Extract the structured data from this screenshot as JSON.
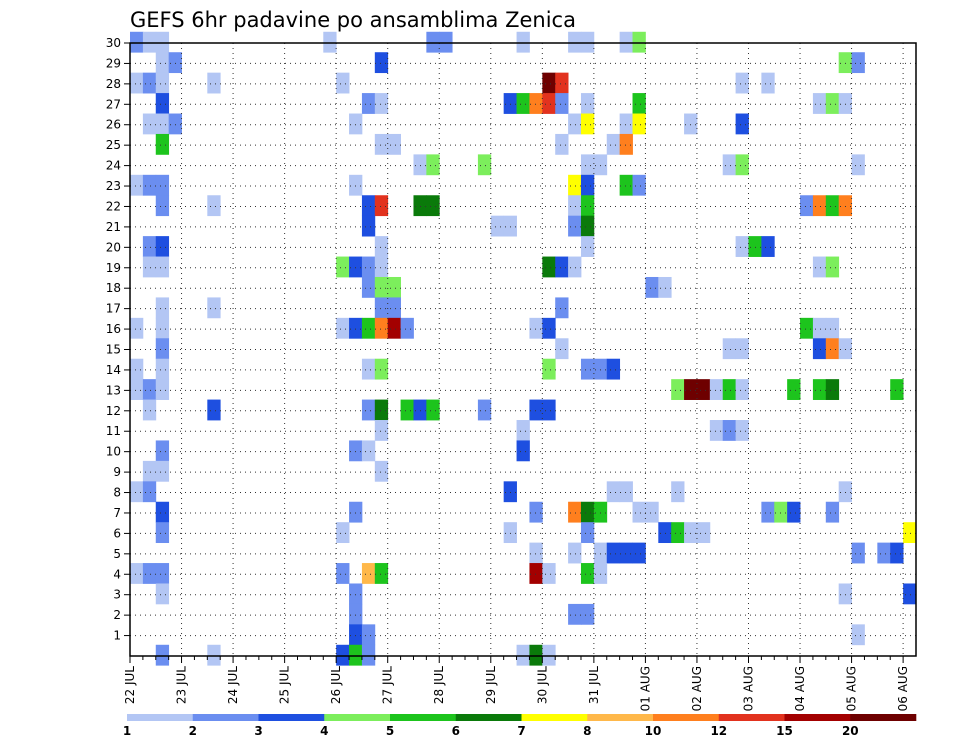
{
  "chart_data": {
    "type": "heatmap",
    "title": "GEFS 6hr padavine po ansamblima Zenica",
    "xlabel": "",
    "ylabel": "",
    "x_tick_labels": [
      "22 JUL",
      "23 JUL",
      "24 JUL",
      "25 JUL",
      "26 JUL",
      "27 JUL",
      "28 JUL",
      "29 JUL",
      "30 JUL",
      "31 JUL",
      "01 AUG",
      "02 AUG",
      "03 AUG",
      "04 AUG",
      "05 AUG",
      "06 AUG"
    ],
    "y_tick_labels": [
      "1",
      "2",
      "3",
      "4",
      "5",
      "6",
      "7",
      "8",
      "9",
      "10",
      "11",
      "12",
      "13",
      "14",
      "15",
      "16",
      "17",
      "18",
      "19",
      "20",
      "21",
      "22",
      "23",
      "24",
      "25",
      "26",
      "27",
      "28",
      "29",
      "30"
    ],
    "ylim": [
      0,
      30
    ],
    "time_steps": 61,
    "grid": true,
    "colorbar": {
      "levels": [
        "1",
        "2",
        "3",
        "4",
        "5",
        "6",
        "7",
        "8",
        "10",
        "12",
        "15",
        "20"
      ],
      "colors": [
        "#b3c6f4",
        "#6b8ef0",
        "#1e4fe0",
        "#7cee5c",
        "#1dc41d",
        "#0a7a0a",
        "#ffff00",
        "#ffb84a",
        "#ff7f1e",
        "#e2321e",
        "#a30000",
        "#6e0000"
      ]
    },
    "cells": [
      [
        0,
        30,
        2
      ],
      [
        1,
        30,
        1
      ],
      [
        2,
        30,
        1
      ],
      [
        15,
        30,
        1
      ],
      [
        23,
        30,
        2
      ],
      [
        24,
        30,
        2
      ],
      [
        30,
        30,
        1
      ],
      [
        34,
        30,
        1
      ],
      [
        35,
        30,
        1
      ],
      [
        38,
        30,
        1
      ],
      [
        39,
        30,
        4
      ],
      [
        2,
        29,
        1
      ],
      [
        3,
        29,
        2
      ],
      [
        19,
        29,
        3
      ],
      [
        55,
        29,
        4
      ],
      [
        56,
        29,
        2
      ],
      [
        0,
        28,
        1
      ],
      [
        1,
        28,
        2
      ],
      [
        2,
        28,
        1
      ],
      [
        6,
        28,
        1
      ],
      [
        16,
        28,
        1
      ],
      [
        32,
        28,
        12
      ],
      [
        33,
        28,
        10
      ],
      [
        47,
        28,
        1
      ],
      [
        49,
        28,
        1
      ],
      [
        2,
        27,
        3
      ],
      [
        18,
        27,
        2
      ],
      [
        19,
        27,
        1
      ],
      [
        29,
        27,
        3
      ],
      [
        30,
        27,
        5
      ],
      [
        31,
        27,
        9
      ],
      [
        32,
        27,
        10
      ],
      [
        33,
        27,
        2
      ],
      [
        35,
        27,
        1
      ],
      [
        39,
        27,
        5
      ],
      [
        53,
        27,
        1
      ],
      [
        54,
        27,
        4
      ],
      [
        55,
        27,
        1
      ],
      [
        1,
        26,
        1
      ],
      [
        2,
        26,
        1
      ],
      [
        3,
        26,
        2
      ],
      [
        17,
        26,
        1
      ],
      [
        34,
        26,
        1
      ],
      [
        35,
        26,
        7
      ],
      [
        38,
        26,
        1
      ],
      [
        39,
        26,
        7
      ],
      [
        43,
        26,
        1
      ],
      [
        47,
        26,
        3
      ],
      [
        2,
        25,
        5
      ],
      [
        19,
        25,
        1
      ],
      [
        20,
        25,
        1
      ],
      [
        33,
        25,
        1
      ],
      [
        37,
        25,
        1
      ],
      [
        38,
        25,
        9
      ],
      [
        22,
        24,
        1
      ],
      [
        23,
        24,
        4
      ],
      [
        27,
        24,
        4
      ],
      [
        35,
        24,
        1
      ],
      [
        36,
        24,
        1
      ],
      [
        46,
        24,
        1
      ],
      [
        47,
        24,
        4
      ],
      [
        56,
        24,
        1
      ],
      [
        0,
        23,
        1
      ],
      [
        1,
        23,
        2
      ],
      [
        2,
        23,
        2
      ],
      [
        17,
        23,
        1
      ],
      [
        34,
        23,
        7
      ],
      [
        35,
        23,
        3
      ],
      [
        38,
        23,
        5
      ],
      [
        39,
        23,
        2
      ],
      [
        2,
        22,
        2
      ],
      [
        6,
        22,
        1
      ],
      [
        18,
        22,
        3
      ],
      [
        19,
        22,
        10
      ],
      [
        22,
        22,
        6
      ],
      [
        23,
        22,
        6
      ],
      [
        34,
        22,
        1
      ],
      [
        35,
        22,
        5
      ],
      [
        52,
        22,
        2
      ],
      [
        53,
        22,
        9
      ],
      [
        54,
        22,
        5
      ],
      [
        55,
        22,
        9
      ],
      [
        18,
        21,
        3
      ],
      [
        28,
        21,
        1
      ],
      [
        29,
        21,
        1
      ],
      [
        34,
        21,
        2
      ],
      [
        35,
        21,
        6
      ],
      [
        1,
        20,
        2
      ],
      [
        2,
        20,
        3
      ],
      [
        19,
        20,
        1
      ],
      [
        35,
        20,
        1
      ],
      [
        47,
        20,
        1
      ],
      [
        48,
        20,
        5
      ],
      [
        49,
        20,
        3
      ],
      [
        1,
        19,
        1
      ],
      [
        2,
        19,
        1
      ],
      [
        16,
        19,
        4
      ],
      [
        17,
        19,
        3
      ],
      [
        18,
        19,
        2
      ],
      [
        19,
        19,
        1
      ],
      [
        32,
        19,
        6
      ],
      [
        33,
        19,
        3
      ],
      [
        34,
        19,
        1
      ],
      [
        53,
        19,
        1
      ],
      [
        54,
        19,
        4
      ],
      [
        18,
        18,
        2
      ],
      [
        19,
        18,
        4
      ],
      [
        20,
        18,
        4
      ],
      [
        40,
        18,
        2
      ],
      [
        41,
        18,
        1
      ],
      [
        2,
        17,
        1
      ],
      [
        6,
        17,
        1
      ],
      [
        19,
        17,
        2
      ],
      [
        20,
        17,
        2
      ],
      [
        33,
        17,
        2
      ],
      [
        0,
        16,
        1
      ],
      [
        2,
        16,
        1
      ],
      [
        16,
        16,
        1
      ],
      [
        17,
        16,
        3
      ],
      [
        18,
        16,
        5
      ],
      [
        19,
        16,
        9
      ],
      [
        20,
        16,
        11
      ],
      [
        21,
        16,
        2
      ],
      [
        31,
        16,
        1
      ],
      [
        32,
        16,
        3
      ],
      [
        52,
        16,
        5
      ],
      [
        53,
        16,
        1
      ],
      [
        54,
        16,
        1
      ],
      [
        2,
        15,
        2
      ],
      [
        33,
        15,
        1
      ],
      [
        46,
        15,
        1
      ],
      [
        47,
        15,
        1
      ],
      [
        53,
        15,
        3
      ],
      [
        54,
        15,
        9
      ],
      [
        55,
        15,
        1
      ],
      [
        0,
        14,
        1
      ],
      [
        2,
        14,
        1
      ],
      [
        18,
        14,
        1
      ],
      [
        19,
        14,
        4
      ],
      [
        32,
        14,
        4
      ],
      [
        35,
        14,
        2
      ],
      [
        36,
        14,
        2
      ],
      [
        37,
        14,
        3
      ],
      [
        0,
        13,
        1
      ],
      [
        1,
        13,
        2
      ],
      [
        2,
        13,
        1
      ],
      [
        42,
        13,
        4
      ],
      [
        43,
        13,
        12
      ],
      [
        44,
        13,
        12
      ],
      [
        45,
        13,
        1
      ],
      [
        46,
        13,
        5
      ],
      [
        47,
        13,
        1
      ],
      [
        51,
        13,
        5
      ],
      [
        53,
        13,
        5
      ],
      [
        54,
        13,
        6
      ],
      [
        59,
        13,
        5
      ],
      [
        1,
        12,
        1
      ],
      [
        6,
        12,
        3
      ],
      [
        18,
        12,
        2
      ],
      [
        19,
        12,
        6
      ],
      [
        21,
        12,
        5
      ],
      [
        22,
        12,
        3
      ],
      [
        23,
        12,
        5
      ],
      [
        27,
        12,
        2
      ],
      [
        31,
        12,
        3
      ],
      [
        32,
        12,
        3
      ],
      [
        19,
        11,
        1
      ],
      [
        30,
        11,
        1
      ],
      [
        45,
        11,
        1
      ],
      [
        46,
        11,
        2
      ],
      [
        47,
        11,
        1
      ],
      [
        2,
        10,
        2
      ],
      [
        17,
        10,
        2
      ],
      [
        18,
        10,
        1
      ],
      [
        30,
        10,
        3
      ],
      [
        1,
        9,
        1
      ],
      [
        2,
        9,
        1
      ],
      [
        19,
        9,
        1
      ],
      [
        0,
        8,
        1
      ],
      [
        1,
        8,
        2
      ],
      [
        29,
        8,
        3
      ],
      [
        37,
        8,
        1
      ],
      [
        38,
        8,
        1
      ],
      [
        42,
        8,
        1
      ],
      [
        55,
        8,
        1
      ],
      [
        2,
        7,
        3
      ],
      [
        17,
        7,
        2
      ],
      [
        31,
        7,
        2
      ],
      [
        34,
        7,
        9
      ],
      [
        35,
        7,
        6
      ],
      [
        36,
        7,
        5
      ],
      [
        39,
        7,
        1
      ],
      [
        40,
        7,
        1
      ],
      [
        49,
        7,
        2
      ],
      [
        50,
        7,
        4
      ],
      [
        51,
        7,
        3
      ],
      [
        54,
        7,
        2
      ],
      [
        2,
        6,
        2
      ],
      [
        16,
        6,
        1
      ],
      [
        29,
        6,
        1
      ],
      [
        35,
        6,
        2
      ],
      [
        41,
        6,
        3
      ],
      [
        42,
        6,
        5
      ],
      [
        43,
        6,
        1
      ],
      [
        44,
        6,
        1
      ],
      [
        60,
        6,
        7
      ],
      [
        31,
        5,
        1
      ],
      [
        34,
        5,
        1
      ],
      [
        36,
        5,
        1
      ],
      [
        37,
        5,
        3
      ],
      [
        38,
        5,
        3
      ],
      [
        39,
        5,
        3
      ],
      [
        56,
        5,
        2
      ],
      [
        58,
        5,
        2
      ],
      [
        59,
        5,
        3
      ],
      [
        0,
        4,
        1
      ],
      [
        1,
        4,
        2
      ],
      [
        2,
        4,
        2
      ],
      [
        16,
        4,
        2
      ],
      [
        18,
        4,
        8
      ],
      [
        19,
        4,
        5
      ],
      [
        31,
        4,
        11
      ],
      [
        32,
        4,
        1
      ],
      [
        35,
        4,
        5
      ],
      [
        36,
        4,
        1
      ],
      [
        2,
        3,
        1
      ],
      [
        17,
        3,
        2
      ],
      [
        55,
        3,
        1
      ],
      [
        60,
        3,
        3
      ],
      [
        17,
        2,
        2
      ],
      [
        34,
        2,
        2
      ],
      [
        35,
        2,
        2
      ],
      [
        17,
        1,
        3
      ],
      [
        18,
        1,
        2
      ],
      [
        56,
        1,
        1
      ],
      [
        2,
        0,
        2
      ],
      [
        6,
        0,
        1
      ],
      [
        16,
        0,
        3
      ],
      [
        17,
        0,
        5
      ],
      [
        18,
        0,
        2
      ],
      [
        30,
        0,
        1
      ],
      [
        31,
        0,
        6
      ],
      [
        32,
        0,
        1
      ]
    ]
  }
}
